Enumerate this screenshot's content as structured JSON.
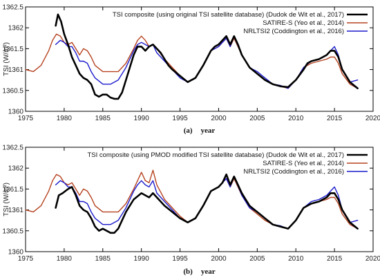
{
  "chart_data": [
    {
      "type": "line",
      "ylabel": "TSI (W/m²)",
      "caption_letter": "(a)",
      "caption_text": "year",
      "xlim": [
        1975,
        2020
      ],
      "ylim": [
        1360,
        1362.5
      ],
      "xticks": [
        1975,
        1980,
        1985,
        1990,
        1995,
        2000,
        2005,
        2010,
        2015,
        2020
      ],
      "yticks": [
        1360,
        1360.5,
        1361,
        1361.5,
        1362,
        1362.5
      ],
      "legend_position": "top-right",
      "grid": false,
      "series": [
        {
          "name": "TSI composite (using original TSI satellite database) (Dudok de Wit et al., 2017)",
          "color": "#000000",
          "width": 2.6,
          "x": [
            1978.9,
            1979.2,
            1979.6,
            1980.0,
            1980.5,
            1981.0,
            1981.5,
            1982.0,
            1982.5,
            1983.0,
            1983.5,
            1984.0,
            1984.5,
            1985.0,
            1985.5,
            1986.0,
            1986.5,
            1987.0,
            1987.5,
            1988.0,
            1988.5,
            1989.0,
            1989.5,
            1990.0,
            1990.5,
            1991.0,
            1991.5,
            1992.0,
            1992.5,
            1993.0,
            1993.5,
            1994.0,
            1995.0,
            1996.0,
            1997.0,
            1998.0,
            1999.0,
            1999.5,
            2000.0,
            2000.5,
            2001.0,
            2001.5,
            2002.0,
            2002.5,
            2003.0,
            2003.5,
            2004.0,
            2005.0,
            2006.0,
            2007.0,
            2008.0,
            2009.0,
            2010.0,
            2011.0,
            2011.5,
            2012.0,
            2013.0,
            2014.0,
            2014.5,
            2015.0,
            2015.5,
            2016.0,
            2017.0,
            2018.0
          ],
          "y": [
            1362.05,
            1362.32,
            1362.15,
            1361.85,
            1361.6,
            1361.3,
            1361.1,
            1360.9,
            1360.8,
            1360.75,
            1360.65,
            1360.4,
            1360.35,
            1360.4,
            1360.4,
            1360.33,
            1360.3,
            1360.3,
            1360.45,
            1360.75,
            1361.05,
            1361.35,
            1361.55,
            1361.55,
            1361.45,
            1361.55,
            1361.6,
            1361.5,
            1361.4,
            1361.25,
            1361.1,
            1361.0,
            1360.85,
            1360.7,
            1360.8,
            1361.1,
            1361.45,
            1361.55,
            1361.6,
            1361.7,
            1361.8,
            1361.6,
            1361.8,
            1361.6,
            1361.35,
            1361.2,
            1361.05,
            1360.9,
            1360.75,
            1360.65,
            1360.6,
            1360.58,
            1360.75,
            1361.0,
            1361.15,
            1361.2,
            1361.25,
            1361.35,
            1361.45,
            1361.45,
            1361.3,
            1361.0,
            1360.7,
            1360.55
          ]
        },
        {
          "name": "SATIRE-S (Yeo et al., 2014)",
          "color": "#b5421f",
          "width": 1.4,
          "x": [
            1975.0,
            1976.0,
            1977.0,
            1978.0,
            1978.5,
            1979.0,
            1979.5,
            1980.0,
            1980.5,
            1981.0,
            1981.5,
            1982.0,
            1982.5,
            1983.0,
            1983.5,
            1984.0,
            1985.0,
            1986.0,
            1987.0,
            1988.0,
            1989.0,
            1989.5,
            1990.0,
            1990.5,
            1991.0,
            1991.5,
            1992.0,
            1993.0,
            1994.0,
            1995.0,
            1996.0,
            1997.0,
            1998.0,
            1999.0,
            2000.0,
            2000.5,
            2001.0,
            2001.5,
            2002.0,
            2003.0,
            2004.0,
            2005.0,
            2006.0,
            2007.0,
            2008.0,
            2009.0,
            2010.0,
            2011.0,
            2012.0,
            2013.0,
            2014.0,
            2014.5,
            2015.0,
            2015.5,
            2016.0,
            2017.0,
            2018.0
          ],
          "y": [
            1361.0,
            1360.95,
            1361.1,
            1361.45,
            1361.7,
            1361.85,
            1361.8,
            1361.65,
            1361.6,
            1361.65,
            1361.5,
            1361.35,
            1361.5,
            1361.45,
            1361.3,
            1361.1,
            1360.95,
            1360.95,
            1360.95,
            1361.15,
            1361.5,
            1361.7,
            1361.8,
            1361.7,
            1361.55,
            1361.6,
            1361.5,
            1361.25,
            1361.05,
            1360.85,
            1360.7,
            1360.8,
            1361.1,
            1361.45,
            1361.55,
            1361.65,
            1361.75,
            1361.55,
            1361.75,
            1361.35,
            1361.05,
            1360.9,
            1360.75,
            1360.65,
            1360.6,
            1360.55,
            1360.75,
            1361.05,
            1361.15,
            1361.2,
            1361.25,
            1361.3,
            1361.3,
            1361.15,
            1360.9,
            1360.65,
            1360.55
          ]
        },
        {
          "name": "NRLTSI2 (Coddington et al., 2016)",
          "color": "#1a1acc",
          "width": 1.4,
          "x": [
            1978.9,
            1979.5,
            1980.0,
            1980.5,
            1981.0,
            1981.5,
            1982.0,
            1982.5,
            1983.0,
            1983.5,
            1984.0,
            1985.0,
            1986.0,
            1987.0,
            1988.0,
            1989.0,
            1989.5,
            1990.0,
            1990.5,
            1991.0,
            1991.5,
            1992.0,
            1993.0,
            1994.0,
            1995.0,
            1996.0,
            1997.0,
            1998.0,
            1999.0,
            2000.0,
            2000.5,
            2001.0,
            2001.5,
            2002.0,
            2003.0,
            2004.0,
            2005.0,
            2006.0,
            2007.0,
            2008.0,
            2009.0,
            2010.0,
            2011.0,
            2012.0,
            2013.0,
            2014.0,
            2014.5,
            2015.0,
            2015.5,
            2016.0,
            2017.0,
            2018.0
          ],
          "y": [
            1361.6,
            1361.7,
            1361.65,
            1361.55,
            1361.55,
            1361.4,
            1361.2,
            1361.2,
            1361.15,
            1360.95,
            1360.8,
            1360.65,
            1360.65,
            1360.75,
            1361.05,
            1361.45,
            1361.6,
            1361.65,
            1361.6,
            1361.55,
            1361.6,
            1361.4,
            1361.2,
            1361.0,
            1360.8,
            1360.7,
            1360.8,
            1361.1,
            1361.45,
            1361.55,
            1361.65,
            1361.75,
            1361.55,
            1361.8,
            1361.35,
            1361.05,
            1360.95,
            1360.8,
            1360.65,
            1360.62,
            1360.55,
            1360.75,
            1361.05,
            1361.2,
            1361.25,
            1361.35,
            1361.45,
            1361.55,
            1361.35,
            1361.0,
            1360.7,
            1360.75
          ]
        }
      ]
    },
    {
      "type": "line",
      "ylabel": "TSI (W/m²)",
      "caption_letter": "(b)",
      "caption_text": "year",
      "xlim": [
        1975,
        2020
      ],
      "ylim": [
        1360,
        1362.5
      ],
      "xticks": [
        1975,
        1980,
        1985,
        1990,
        1995,
        2000,
        2005,
        2010,
        2015,
        2020
      ],
      "yticks": [
        1360,
        1360.5,
        1361,
        1361.5,
        1362,
        1362.5
      ],
      "legend_position": "top-right",
      "grid": false,
      "series": [
        {
          "name": "TSI composite (using PMOD  modified TSI satellite database) (Dudok de Wit et al., 2017)",
          "color": "#000000",
          "width": 2.6,
          "x": [
            1978.9,
            1979.3,
            1979.8,
            1980.5,
            1981.0,
            1981.5,
            1982.0,
            1982.5,
            1983.0,
            1983.5,
            1984.0,
            1984.5,
            1985.0,
            1985.5,
            1986.0,
            1986.5,
            1987.0,
            1987.5,
            1988.0,
            1989.0,
            1990.0,
            1990.5,
            1991.0,
            1991.5,
            1992.0,
            1993.0,
            1994.0,
            1995.0,
            1996.0,
            1997.0,
            1998.0,
            1999.0,
            2000.0,
            2000.5,
            2001.0,
            2001.5,
            2002.0,
            2003.0,
            2004.0,
            2005.0,
            2006.0,
            2007.0,
            2008.0,
            2009.0,
            2010.0,
            2011.0,
            2012.0,
            2013.0,
            2014.0,
            2014.5,
            2015.0,
            2015.5,
            2016.0,
            2017.0,
            2018.0
          ],
          "y": [
            1361.05,
            1361.35,
            1361.4,
            1361.5,
            1361.55,
            1361.35,
            1361.1,
            1361.0,
            1360.95,
            1360.8,
            1360.6,
            1360.5,
            1360.55,
            1360.5,
            1360.45,
            1360.45,
            1360.55,
            1360.75,
            1360.95,
            1361.25,
            1361.4,
            1361.35,
            1361.3,
            1361.4,
            1361.3,
            1361.1,
            1360.95,
            1360.8,
            1360.7,
            1360.8,
            1361.1,
            1361.45,
            1361.55,
            1361.65,
            1361.85,
            1361.6,
            1361.8,
            1361.4,
            1361.1,
            1360.95,
            1360.8,
            1360.65,
            1360.6,
            1360.55,
            1360.75,
            1361.05,
            1361.15,
            1361.2,
            1361.3,
            1361.4,
            1361.4,
            1361.25,
            1361.0,
            1360.7,
            1360.55
          ]
        },
        {
          "name": "SATIRE-S (Yeo et al., 2014)",
          "color": "#b5421f",
          "width": 1.4,
          "x": [
            1975.0,
            1976.0,
            1977.0,
            1978.0,
            1978.5,
            1979.0,
            1979.5,
            1980.0,
            1980.5,
            1981.0,
            1981.5,
            1982.0,
            1982.5,
            1983.0,
            1983.5,
            1984.0,
            1985.0,
            1986.0,
            1987.0,
            1988.0,
            1989.0,
            1989.5,
            1990.0,
            1990.5,
            1991.0,
            1991.5,
            1992.0,
            1993.0,
            1994.0,
            1995.0,
            1996.0,
            1997.0,
            1998.0,
            1999.0,
            2000.0,
            2000.5,
            2001.0,
            2001.5,
            2002.0,
            2003.0,
            2004.0,
            2005.0,
            2006.0,
            2007.0,
            2008.0,
            2009.0,
            2010.0,
            2011.0,
            2012.0,
            2013.0,
            2014.0,
            2014.5,
            2015.0,
            2015.5,
            2016.0,
            2017.0,
            2018.0
          ],
          "y": [
            1361.0,
            1360.95,
            1361.1,
            1361.45,
            1361.7,
            1361.85,
            1361.8,
            1361.65,
            1361.6,
            1361.65,
            1361.5,
            1361.35,
            1361.5,
            1361.45,
            1361.3,
            1361.1,
            1360.95,
            1360.95,
            1360.95,
            1361.15,
            1361.5,
            1361.7,
            1361.9,
            1361.7,
            1361.65,
            1361.95,
            1361.6,
            1361.25,
            1361.05,
            1360.85,
            1360.7,
            1360.8,
            1361.1,
            1361.45,
            1361.55,
            1361.65,
            1361.75,
            1361.55,
            1361.75,
            1361.35,
            1361.05,
            1360.9,
            1360.75,
            1360.65,
            1360.6,
            1360.55,
            1360.75,
            1361.05,
            1361.15,
            1361.2,
            1361.25,
            1361.3,
            1361.3,
            1361.15,
            1360.9,
            1360.65,
            1360.55
          ]
        },
        {
          "name": "NRLTSI2 (Coddington et al., 2016)",
          "color": "#1a1acc",
          "width": 1.4,
          "x": [
            1978.9,
            1979.5,
            1980.0,
            1980.5,
            1981.0,
            1981.5,
            1982.0,
            1982.5,
            1983.0,
            1983.5,
            1984.0,
            1985.0,
            1986.0,
            1987.0,
            1988.0,
            1989.0,
            1989.5,
            1990.0,
            1990.5,
            1991.0,
            1991.5,
            1992.0,
            1993.0,
            1994.0,
            1995.0,
            1996.0,
            1997.0,
            1998.0,
            1999.0,
            2000.0,
            2000.5,
            2001.0,
            2001.5,
            2002.0,
            2003.0,
            2004.0,
            2005.0,
            2006.0,
            2007.0,
            2008.0,
            2009.0,
            2010.0,
            2011.0,
            2012.0,
            2013.0,
            2014.0,
            2014.5,
            2015.0,
            2015.5,
            2016.0,
            2017.0,
            2018.0
          ],
          "y": [
            1361.6,
            1361.7,
            1361.65,
            1361.55,
            1361.55,
            1361.4,
            1361.2,
            1361.2,
            1361.15,
            1360.95,
            1360.8,
            1360.65,
            1360.65,
            1360.75,
            1361.05,
            1361.45,
            1361.6,
            1361.7,
            1361.6,
            1361.55,
            1361.7,
            1361.4,
            1361.2,
            1361.0,
            1360.8,
            1360.7,
            1360.8,
            1361.1,
            1361.45,
            1361.55,
            1361.65,
            1361.75,
            1361.55,
            1361.8,
            1361.35,
            1361.05,
            1360.95,
            1360.8,
            1360.65,
            1360.62,
            1360.55,
            1360.75,
            1361.05,
            1361.2,
            1361.25,
            1361.35,
            1361.45,
            1361.55,
            1361.35,
            1361.0,
            1360.7,
            1360.75
          ]
        }
      ]
    }
  ]
}
